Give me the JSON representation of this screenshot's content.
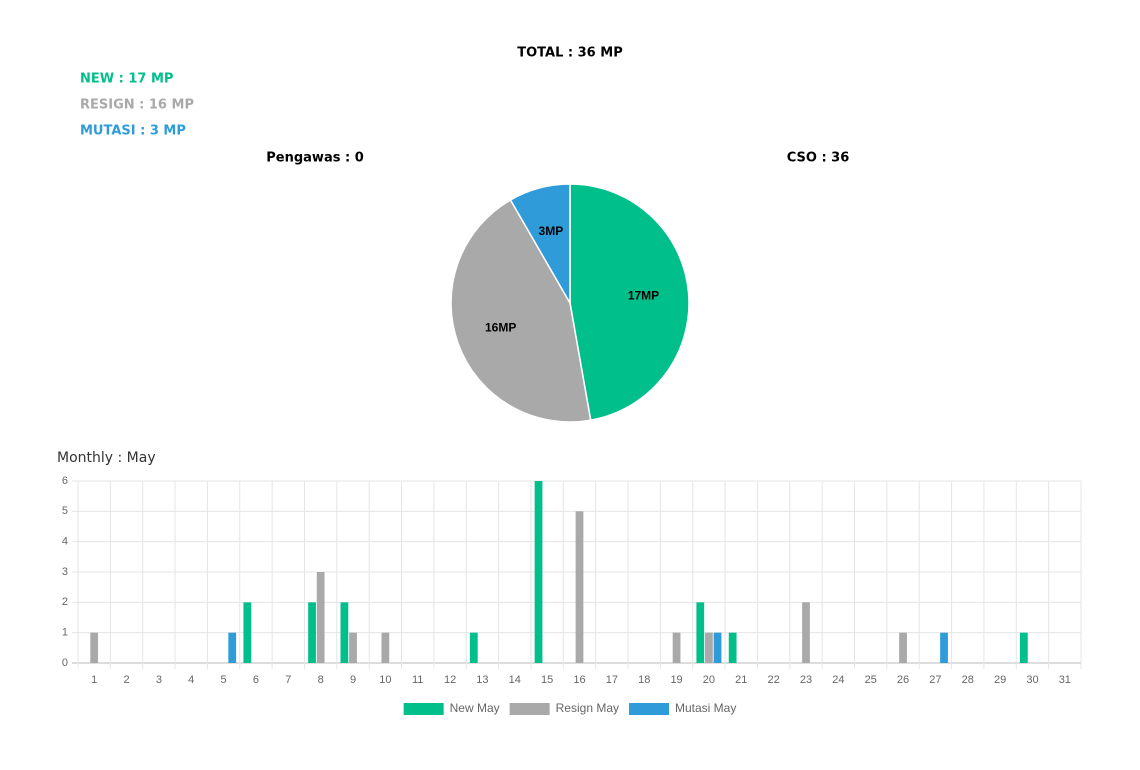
{
  "header": {
    "total": "TOTAL : 36 MP",
    "new": "NEW : 17 MP",
    "resign": "RESIGN : 16 MP",
    "mutasi": "MUTASI : 3 MP",
    "pengawas": "Pengawas : 0",
    "cso": "CSO : 36"
  },
  "chart_data": [
    {
      "type": "pie",
      "values": [
        17,
        16,
        3
      ],
      "value_labels": [
        "17MP",
        "16MP",
        "3MP"
      ],
      "colors": [
        "#00bf8a",
        "#a9a9a9",
        "#2f9bd9"
      ]
    },
    {
      "type": "bar",
      "title": "Monthly : May",
      "categories": [
        "1",
        "2",
        "3",
        "4",
        "5",
        "6",
        "7",
        "8",
        "9",
        "10",
        "11",
        "12",
        "13",
        "14",
        "15",
        "16",
        "17",
        "18",
        "19",
        "20",
        "21",
        "22",
        "23",
        "24",
        "25",
        "26",
        "27",
        "28",
        "29",
        "30",
        "31"
      ],
      "series": [
        {
          "name": "New May",
          "color": "#00bf8a",
          "values": [
            0,
            0,
            0,
            0,
            0,
            2,
            0,
            2,
            2,
            0,
            0,
            0,
            1,
            0,
            6,
            0,
            0,
            0,
            0,
            2,
            1,
            0,
            0,
            0,
            0,
            0,
            0,
            0,
            0,
            1,
            0
          ]
        },
        {
          "name": "Resign May",
          "color": "#a9a9a9",
          "values": [
            1,
            0,
            0,
            0,
            0,
            0,
            0,
            3,
            1,
            1,
            0,
            0,
            0,
            0,
            0,
            5,
            0,
            0,
            1,
            1,
            0,
            0,
            2,
            0,
            0,
            1,
            0,
            0,
            0,
            0,
            0
          ]
        },
        {
          "name": "Mutasi May",
          "color": "#2f9bd9",
          "values": [
            0,
            0,
            0,
            0,
            1,
            0,
            0,
            0,
            0,
            0,
            0,
            0,
            0,
            0,
            0,
            0,
            0,
            0,
            0,
            1,
            0,
            0,
            0,
            0,
            0,
            0,
            1,
            0,
            0,
            0,
            0
          ]
        }
      ],
      "ylim": [
        0,
        6
      ],
      "yticks": [
        0,
        1,
        2,
        3,
        4,
        5,
        6
      ],
      "grid": true,
      "legend": "bottom"
    }
  ]
}
